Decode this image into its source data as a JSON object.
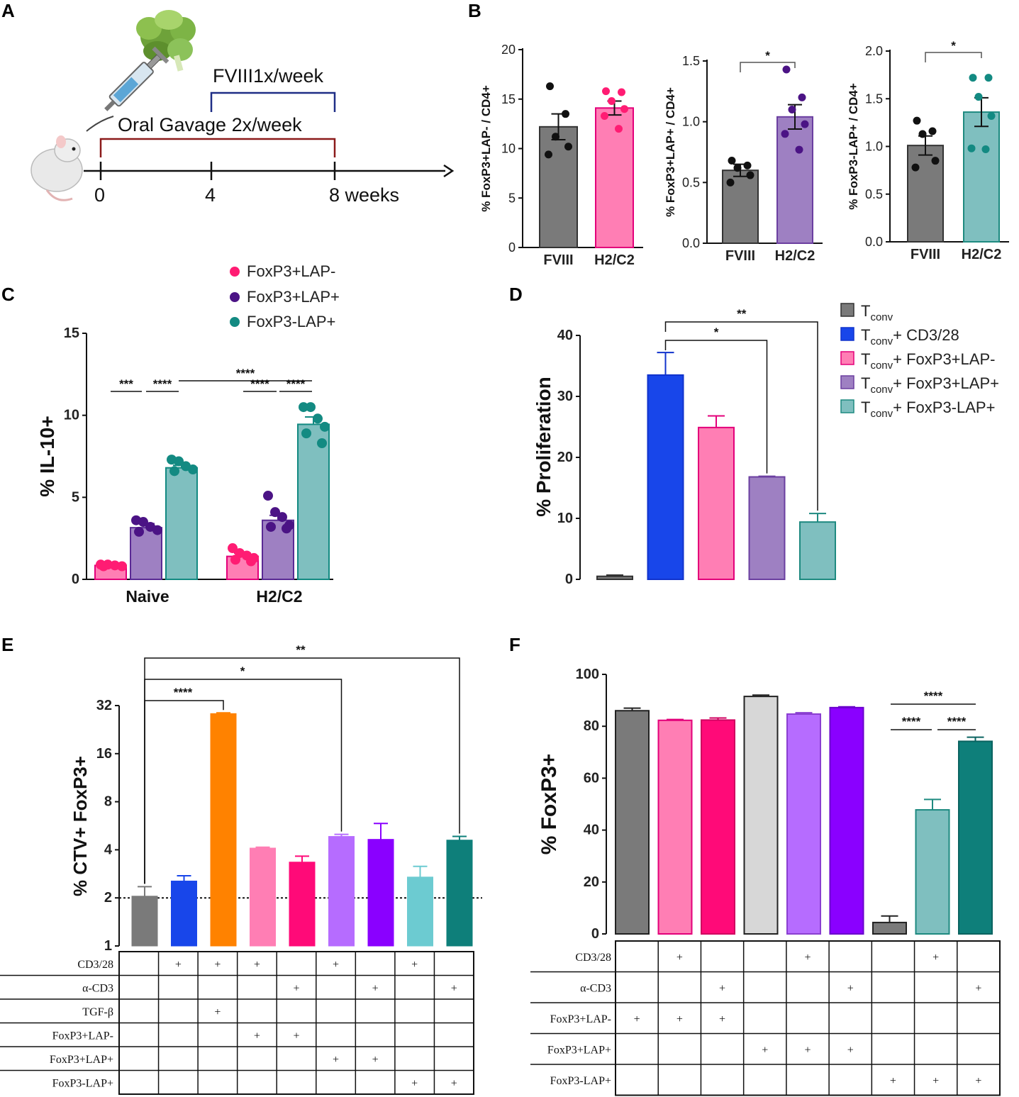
{
  "panels": {
    "A": "A",
    "B": "B",
    "C": "C",
    "D": "D",
    "E": "E",
    "F": "F"
  },
  "schematic": {
    "fviii_label": "FVIII1x/week",
    "gavage_label": "Oral Gavage 2x/week",
    "time_labels": [
      "0",
      "4",
      "8 weeks"
    ]
  },
  "colors": {
    "gray": "#7a7a7a",
    "pink": "#ff7eb4",
    "hotpink": "#ff0a78",
    "purple": "#9e80c2",
    "violet": "#8a00ff",
    "lilac": "#b66cff",
    "teal": "#7fbfbf",
    "darkteal": "#0e7f7a",
    "blue": "#1846ea",
    "orange": "#ff8200",
    "lightgray": "#d7d7d7",
    "cyan": "#6ccbd1",
    "dotpink": "#ff1c73",
    "dotpurple": "#4b1385",
    "dotteal": "#138a82"
  },
  "chart_data": [
    {
      "id": "B1",
      "type": "bar",
      "ylabel": "% FoxP3+LAP- / CD4+",
      "ylim": [
        0,
        20
      ],
      "yticks": [
        "0",
        "5",
        "10",
        "15",
        "20"
      ],
      "categories": [
        "FVIII",
        "H2/C2"
      ],
      "values": [
        12.2,
        14.1
      ],
      "errors": [
        1.3,
        0.7
      ],
      "points": [
        [
          16.3,
          13.5,
          11.2,
          10.2,
          9.4
        ],
        [
          15.8,
          15.7,
          14.8,
          14.0,
          13.3,
          12.0
        ]
      ],
      "significance": []
    },
    {
      "id": "B2",
      "type": "bar",
      "ylabel": "% FoxP3+LAP+ / CD4+",
      "ylim": [
        0,
        1.5
      ],
      "yticks": [
        "0.0",
        "0.5",
        "1.0",
        "1.5"
      ],
      "categories": [
        "FVIII",
        "H2/C2"
      ],
      "values": [
        0.6,
        1.04
      ],
      "errors": [
        0.05,
        0.1
      ],
      "points": [
        [
          0.68,
          0.64,
          0.62,
          0.56,
          0.5
        ],
        [
          1.43,
          1.2,
          1.1,
          0.98,
          0.9,
          0.77
        ]
      ],
      "significance": [
        {
          "label": "*",
          "from": 0,
          "to": 1
        }
      ]
    },
    {
      "id": "B3",
      "type": "bar",
      "ylabel": "% FoxP3-LAP+ / CD4+",
      "ylim": [
        0,
        2.0
      ],
      "yticks": [
        "0.0",
        "0.5",
        "1.0",
        "1.5",
        "2.0"
      ],
      "categories": [
        "FVIII",
        "H2/C2"
      ],
      "values": [
        1.01,
        1.36
      ],
      "errors": [
        0.1,
        0.15
      ],
      "points": [
        [
          1.27,
          1.16,
          1.13,
          0.85,
          0.78
        ],
        [
          1.72,
          1.72,
          1.52,
          1.32,
          0.98,
          0.97
        ]
      ],
      "significance": [
        {
          "label": "*",
          "from": 0,
          "to": 1
        }
      ]
    },
    {
      "id": "C",
      "type": "bar",
      "ylabel": "% IL-10+",
      "ylim": [
        0,
        15
      ],
      "yticks": [
        "0",
        "5",
        "10",
        "15"
      ],
      "categories": [
        "Naive",
        "H2/C2"
      ],
      "legend": [
        "FoxP3+LAP-",
        "FoxP3+LAP+",
        "FoxP3-LAP+"
      ],
      "series": [
        {
          "name": "FoxP3+LAP-",
          "values": [
            0.85,
            1.4
          ],
          "errors": [
            0.05,
            0.2
          ],
          "points": [
            [
              0.9,
              0.9,
              0.85,
              0.8,
              0.8
            ],
            [
              1.9,
              1.6,
              1.45,
              1.3,
              1.2,
              1.1
            ]
          ]
        },
        {
          "name": "FoxP3+LAP+",
          "values": [
            3.15,
            3.6
          ],
          "errors": [
            0.25,
            0.3
          ],
          "points": [
            [
              3.6,
              3.5,
              3.2,
              3.0,
              2.9
            ],
            [
              5.1,
              4.1,
              3.8,
              3.3,
              3.2,
              3.1
            ]
          ]
        },
        {
          "name": "FoxP3-LAP+",
          "values": [
            6.8,
            9.45
          ],
          "errors": [
            0.15,
            0.45
          ],
          "points": [
            [
              7.3,
              7.2,
              6.9,
              6.7,
              6.6
            ],
            [
              10.5,
              10.5,
              9.8,
              9.3,
              8.9,
              8.3
            ]
          ]
        }
      ],
      "significance": [
        {
          "label": "***"
        },
        {
          "label": "****"
        },
        {
          "label": "****"
        },
        {
          "label": "****"
        },
        {
          "label": "****"
        }
      ]
    },
    {
      "id": "D",
      "type": "bar",
      "ylabel": "% Proliferation",
      "ylim": [
        0,
        40
      ],
      "yticks": [
        "0",
        "10",
        "20",
        "30",
        "40"
      ],
      "legend": [
        {
          "main": "T",
          "sub": "conv",
          "rest": ""
        },
        {
          "main": "T",
          "sub": "conv",
          "rest": "+ CD3/28"
        },
        {
          "main": "T",
          "sub": "conv",
          "rest": "+ FoxP3+LAP-"
        },
        {
          "main": "T",
          "sub": "conv",
          "rest": "+ FoxP3+LAP+"
        },
        {
          "main": "T",
          "sub": "conv",
          "rest": "+ FoxP3-LAP+"
        }
      ],
      "values": [
        0.5,
        33.5,
        24.9,
        16.8,
        9.4
      ],
      "errors": [
        0.2,
        3.7,
        1.9,
        0.1,
        1.4
      ],
      "significance": [
        {
          "label": "*",
          "from": 1,
          "to": 3
        },
        {
          "label": "**",
          "from": 1,
          "to": 4
        }
      ]
    },
    {
      "id": "E",
      "type": "bar",
      "ylabel": "% CTV+ FoxP3+",
      "yscale": "log2",
      "ylim": [
        1,
        32
      ],
      "yticks": [
        "1",
        "2",
        "4",
        "8",
        "16",
        "32"
      ],
      "reference_line": 2,
      "values": [
        2.05,
        2.55,
        28.5,
        4.1,
        3.35,
        4.85,
        4.65,
        2.7,
        4.6
      ],
      "errors": [
        0.3,
        0.2,
        0.3,
        0.05,
        0.3,
        0.15,
        1.2,
        0.45,
        0.25
      ],
      "significance": [
        {
          "label": "****",
          "from": 0,
          "to": 2
        },
        {
          "label": "*",
          "from": 0,
          "to": 5
        },
        {
          "label": "**",
          "from": 0,
          "to": 8
        }
      ],
      "table": {
        "rows": [
          {
            "label": "CD3/28",
            "marks": [
              "",
              "+",
              "+",
              "+",
              "",
              "+",
              "",
              "+",
              ""
            ]
          },
          {
            "label": "α-CD3",
            "marks": [
              "",
              "",
              "",
              "",
              "+",
              "",
              "+",
              "",
              "+"
            ]
          },
          {
            "label": "TGF-β",
            "marks": [
              "",
              "",
              "+",
              "",
              "",
              "",
              "",
              "",
              ""
            ]
          },
          {
            "label": "FoxP3+LAP-",
            "marks": [
              "",
              "",
              "",
              "+",
              "+",
              "",
              "",
              "",
              ""
            ]
          },
          {
            "label": "FoxP3+LAP+",
            "marks": [
              "",
              "",
              "",
              "",
              "",
              "+",
              "+",
              "",
              ""
            ]
          },
          {
            "label": "FoxP3-LAP+",
            "marks": [
              "",
              "",
              "",
              "",
              "",
              "",
              "",
              "+",
              "+"
            ]
          }
        ]
      }
    },
    {
      "id": "F",
      "type": "bar",
      "ylabel": "% FoxP3+",
      "ylim": [
        0,
        100
      ],
      "yticks": [
        "0",
        "20",
        "40",
        "60",
        "80",
        "100"
      ],
      "values": [
        86,
        82.3,
        82.4,
        91.5,
        84.7,
        87.2,
        4.4,
        47.8,
        74.2
      ],
      "errors": [
        1.0,
        0.3,
        0.8,
        0.5,
        0.5,
        0.3,
        2.5,
        4.0,
        1.6
      ],
      "significance": [
        {
          "label": "****",
          "from": 6,
          "to": 8
        },
        {
          "label": "****",
          "from": 6,
          "to": 7
        },
        {
          "label": "****",
          "from": 7,
          "to": 8
        }
      ],
      "table": {
        "rows": [
          {
            "label": "CD3/28",
            "marks": [
              "",
              "+",
              "",
              "",
              "+",
              "",
              "",
              "+",
              ""
            ]
          },
          {
            "label": "α-CD3",
            "marks": [
              "",
              "",
              "+",
              "",
              "",
              "+",
              "",
              "",
              "+"
            ]
          },
          {
            "label": "FoxP3+LAP-",
            "marks": [
              "+",
              "+",
              "+",
              "",
              "",
              "",
              "",
              "",
              ""
            ]
          },
          {
            "label": "FoxP3+LAP+",
            "marks": [
              "",
              "",
              "",
              "+",
              "+",
              "+",
              "",
              "",
              ""
            ]
          },
          {
            "label": "FoxP3-LAP+",
            "marks": [
              "",
              "",
              "",
              "",
              "",
              "",
              "+",
              "+",
              "+"
            ]
          }
        ]
      }
    }
  ]
}
